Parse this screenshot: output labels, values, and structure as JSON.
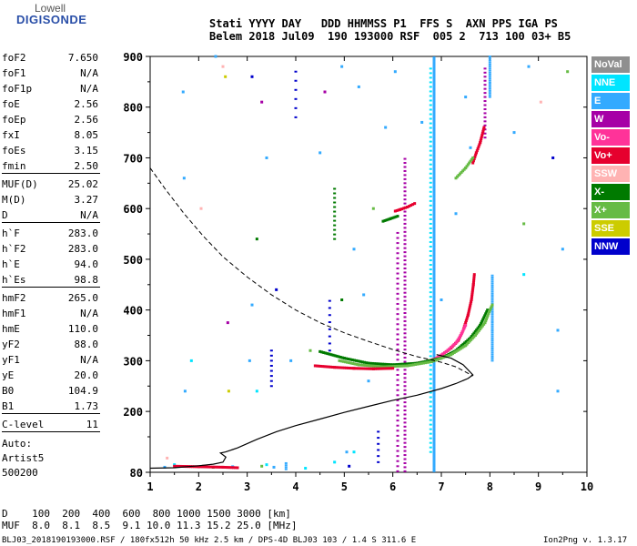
{
  "logo": {
    "line1": "Lowell",
    "line2": "DIGISONDE"
  },
  "header": {
    "line1": "Stati YYYY DAY   DDD HHMMSS P1  FFS S  AXN PPS IGA PS",
    "line2": "Belem 2018 Jul09  190 193000 RSF  005 2  713 100 03+ B5"
  },
  "params": [
    [
      {
        "label": "foF2",
        "value": "7.650"
      },
      {
        "label": "foF1",
        "value": "N/A"
      },
      {
        "label": "foF1p",
        "value": "N/A"
      },
      {
        "label": "foE",
        "value": "2.56"
      },
      {
        "label": "foEp",
        "value": "2.56"
      },
      {
        "label": "fxI",
        "value": "8.05"
      },
      {
        "label": "foEs",
        "value": "3.15"
      },
      {
        "label": "fmin",
        "value": "2.50"
      }
    ],
    [
      {
        "label": "MUF(D)",
        "value": "25.02"
      },
      {
        "label": "M(D)",
        "value": "3.27"
      },
      {
        "label": "D",
        "value": "N/A"
      }
    ],
    [
      {
        "label": "h`F",
        "value": "283.0"
      },
      {
        "label": "h`F2",
        "value": "283.0"
      },
      {
        "label": "h`E",
        "value": "94.0"
      },
      {
        "label": "h`Es",
        "value": "98.8"
      }
    ],
    [
      {
        "label": "hmF2",
        "value": "265.0"
      },
      {
        "label": "hmF1",
        "value": "N/A"
      },
      {
        "label": "hmE",
        "value": "110.0"
      },
      {
        "label": "yF2",
        "value": "88.0"
      },
      {
        "label": "yF1",
        "value": "N/A"
      },
      {
        "label": "yE",
        "value": "20.0"
      },
      {
        "label": "B0",
        "value": "104.9"
      },
      {
        "label": "B1",
        "value": "1.73"
      }
    ],
    [
      {
        "label": "C-level",
        "value": "11"
      }
    ]
  ],
  "autoscale": {
    "line1": "Auto:",
    "line2": "Artist5",
    "line3": "500200"
  },
  "legend": [
    {
      "label": "NoVal",
      "bg": "#8f8f8f",
      "fg": "#ffffff"
    },
    {
      "label": "NNE",
      "bg": "#00e5ff",
      "fg": "#ffffff"
    },
    {
      "label": "E",
      "bg": "#33aaff",
      "fg": "#ffffff"
    },
    {
      "label": "W",
      "bg": "#a600a6",
      "fg": "#ffffff"
    },
    {
      "label": "Vo-",
      "bg": "#ff3399",
      "fg": "#ffffff"
    },
    {
      "label": "Vo+",
      "bg": "#e6002e",
      "fg": "#ffffff"
    },
    {
      "label": "SSW",
      "bg": "#ffb3b3",
      "fg": "#ffffff"
    },
    {
      "label": "X-",
      "bg": "#007a00",
      "fg": "#ffffff"
    },
    {
      "label": "X+",
      "bg": "#66bb44",
      "fg": "#ffffff"
    },
    {
      "label": "SSE",
      "bg": "#cccc00",
      "fg": "#ffffff"
    },
    {
      "label": "NNW",
      "bg": "#0000cc",
      "fg": "#ffffff"
    }
  ],
  "footer": {
    "line1": "D    100  200  400  600  800 1000 1500 3000 [km]",
    "line2": "MUF  8.0  8.1  8.5  9.1 10.0 11.3 15.2 25.0 [MHz]",
    "line3": "BLJ03_2018190193000.RSF / 180fx512h 50 kHz 2.5 km / DPS-4D BLJ03 103 / 1.4 S 311.6 E",
    "version": "Ion2Png v. 1.3.17"
  },
  "chart_data": {
    "type": "scatter",
    "xlim": [
      1,
      10
    ],
    "ylim": [
      80,
      900
    ],
    "xticks": [
      1,
      2,
      3,
      4,
      5,
      6,
      7,
      8,
      9,
      10
    ],
    "yticks": [
      200,
      300,
      400,
      500,
      600,
      700,
      800,
      900
    ],
    "ytick_first_label": "80",
    "colors": {
      "NNE": "#00e5ff",
      "E": "#33aaff",
      "W": "#a600a6",
      "Vo-": "#ff3399",
      "Vo+": "#e6002e",
      "SSW": "#ffb3b3",
      "X-": "#007a00",
      "X+": "#66bb44",
      "SSE": "#cccc00",
      "NNW": "#0000cc"
    },
    "profile_solid": [
      [
        1.0,
        88
      ],
      [
        1.5,
        89
      ],
      [
        2.0,
        93
      ],
      [
        2.3,
        96
      ],
      [
        2.5,
        100
      ],
      [
        2.56,
        110
      ],
      [
        2.45,
        118
      ],
      [
        2.55,
        120
      ],
      [
        2.8,
        128
      ],
      [
        3.2,
        145
      ],
      [
        3.6,
        160
      ],
      [
        4.0,
        172
      ],
      [
        4.5,
        185
      ],
      [
        5.0,
        198
      ],
      [
        5.5,
        210
      ],
      [
        6.0,
        222
      ],
      [
        6.5,
        232
      ],
      [
        7.0,
        245
      ],
      [
        7.3,
        255
      ],
      [
        7.55,
        265
      ],
      [
        7.65,
        272
      ],
      [
        7.45,
        292
      ],
      [
        7.2,
        305
      ],
      [
        6.9,
        312
      ]
    ],
    "profile_dashed": [
      [
        1.0,
        680
      ],
      [
        1.3,
        640
      ],
      [
        1.7,
        590
      ],
      [
        2.1,
        545
      ],
      [
        2.5,
        505
      ],
      [
        3.0,
        465
      ],
      [
        3.5,
        430
      ],
      [
        4.0,
        400
      ],
      [
        4.5,
        375
      ],
      [
        5.0,
        355
      ],
      [
        5.5,
        338
      ],
      [
        6.0,
        322
      ],
      [
        6.5,
        308
      ],
      [
        7.0,
        297
      ],
      [
        7.3,
        288
      ],
      [
        7.65,
        270
      ]
    ],
    "traces": [
      {
        "color": "Vo+",
        "points": [
          [
            6.2,
            292
          ],
          [
            6.5,
            295
          ],
          [
            6.8,
            300
          ],
          [
            7.0,
            310
          ],
          [
            7.2,
            325
          ],
          [
            7.35,
            340
          ],
          [
            7.45,
            360
          ],
          [
            7.55,
            390
          ],
          [
            7.62,
            420
          ],
          [
            7.66,
            450
          ],
          [
            7.68,
            470
          ]
        ]
      },
      {
        "color": "Vo-",
        "points": [
          [
            6.1,
            290
          ],
          [
            6.4,
            292
          ],
          [
            6.7,
            298
          ],
          [
            6.9,
            305
          ],
          [
            7.1,
            318
          ],
          [
            7.3,
            335
          ],
          [
            7.4,
            350
          ],
          [
            7.5,
            370
          ]
        ]
      },
      {
        "color": "X-",
        "points": [
          [
            4.5,
            318
          ],
          [
            5.0,
            305
          ],
          [
            5.5,
            295
          ],
          [
            6.0,
            292
          ],
          [
            6.5,
            295
          ],
          [
            7.0,
            305
          ],
          [
            7.3,
            320
          ],
          [
            7.6,
            345
          ],
          [
            7.8,
            370
          ],
          [
            7.95,
            400
          ]
        ]
      },
      {
        "color": "X+",
        "points": [
          [
            4.9,
            300
          ],
          [
            5.3,
            292
          ],
          [
            5.8,
            288
          ],
          [
            6.3,
            290
          ],
          [
            6.8,
            298
          ],
          [
            7.2,
            312
          ],
          [
            7.5,
            330
          ],
          [
            7.7,
            350
          ],
          [
            7.9,
            375
          ],
          [
            8.0,
            400
          ],
          [
            8.05,
            410
          ]
        ]
      },
      {
        "color": "Vo+",
        "points": [
          [
            4.4,
            290
          ],
          [
            4.8,
            287
          ],
          [
            5.2,
            285
          ],
          [
            5.6,
            284
          ],
          [
            6.0,
            285
          ]
        ]
      },
      {
        "color": "Vo+",
        "points": [
          [
            6.05,
            595
          ],
          [
            6.15,
            598
          ],
          [
            6.3,
            603
          ],
          [
            6.45,
            610
          ]
        ]
      },
      {
        "color": "Vo+",
        "points": [
          [
            7.65,
            690
          ],
          [
            7.72,
            710
          ],
          [
            7.8,
            730
          ],
          [
            7.88,
            760
          ]
        ]
      },
      {
        "color": "Vo+",
        "points": [
          [
            1.5,
            92
          ],
          [
            2.0,
            91
          ],
          [
            2.5,
            90
          ],
          [
            2.8,
            89
          ]
        ]
      },
      {
        "color": "X-",
        "points": [
          [
            5.8,
            575
          ],
          [
            5.95,
            580
          ],
          [
            6.1,
            585
          ]
        ]
      },
      {
        "color": "X+",
        "points": [
          [
            7.3,
            660
          ],
          [
            7.5,
            680
          ],
          [
            7.65,
            700
          ]
        ]
      }
    ],
    "columns": [
      {
        "x": 6.85,
        "y0": 82,
        "y1": 900,
        "color": "E",
        "step": 3
      },
      {
        "x": 6.78,
        "y0": 120,
        "y1": 880,
        "color": "NNE",
        "step": 9
      },
      {
        "x": 6.25,
        "y0": 82,
        "y1": 700,
        "color": "W",
        "step": 8
      },
      {
        "x": 6.1,
        "y0": 82,
        "y1": 560,
        "color": "W",
        "step": 10
      },
      {
        "x": 8.05,
        "y0": 300,
        "y1": 470,
        "color": "E",
        "step": 4
      },
      {
        "x": 8.0,
        "y0": 820,
        "y1": 900,
        "color": "E",
        "step": 4
      },
      {
        "x": 7.9,
        "y0": 740,
        "y1": 880,
        "color": "W",
        "step": 8
      },
      {
        "x": 4.0,
        "y0": 780,
        "y1": 880,
        "color": "NNW",
        "step": 18
      },
      {
        "x": 4.8,
        "y0": 540,
        "y1": 640,
        "color": "X-",
        "step": 9
      },
      {
        "x": 4.7,
        "y0": 320,
        "y1": 420,
        "color": "NNW",
        "step": 14
      },
      {
        "x": 5.7,
        "y0": 100,
        "y1": 160,
        "color": "NNW",
        "step": 12
      },
      {
        "x": 3.5,
        "y0": 250,
        "y1": 320,
        "color": "NNW",
        "step": 10
      },
      {
        "x": 3.8,
        "y0": 86,
        "y1": 100,
        "color": "E",
        "step": 4
      }
    ],
    "dots": [
      [
        1.68,
        830,
        "E"
      ],
      [
        1.7,
        660,
        "E"
      ],
      [
        1.72,
        240,
        "E"
      ],
      [
        1.85,
        300,
        "NNE"
      ],
      [
        2.05,
        600,
        "SSW"
      ],
      [
        2.5,
        880,
        "SSW"
      ],
      [
        2.55,
        860,
        "SSE"
      ],
      [
        2.62,
        240,
        "SSE"
      ],
      [
        2.6,
        375,
        "W"
      ],
      [
        2.35,
        900,
        "E"
      ],
      [
        3.1,
        410,
        "E"
      ],
      [
        3.2,
        540,
        "X-"
      ],
      [
        3.1,
        860,
        "NNW"
      ],
      [
        3.3,
        810,
        "W"
      ],
      [
        3.6,
        440,
        "NNW"
      ],
      [
        3.4,
        700,
        "E"
      ],
      [
        3.05,
        300,
        "E"
      ],
      [
        3.2,
        240,
        "NNE"
      ],
      [
        4.5,
        710,
        "E"
      ],
      [
        4.6,
        830,
        "W"
      ],
      [
        4.95,
        880,
        "E"
      ],
      [
        4.95,
        420,
        "X-"
      ],
      [
        5.3,
        840,
        "E"
      ],
      [
        5.4,
        430,
        "E"
      ],
      [
        5.2,
        520,
        "E"
      ],
      [
        5.5,
        260,
        "E"
      ],
      [
        5.2,
        120,
        "NNE"
      ],
      [
        5.05,
        120,
        "E"
      ],
      [
        5.6,
        600,
        "X+"
      ],
      [
        5.85,
        760,
        "E"
      ],
      [
        6.05,
        870,
        "E"
      ],
      [
        6.6,
        770,
        "E"
      ],
      [
        7.0,
        420,
        "E"
      ],
      [
        7.3,
        590,
        "E"
      ],
      [
        7.6,
        720,
        "E"
      ],
      [
        7.5,
        820,
        "E"
      ],
      [
        8.5,
        750,
        "E"
      ],
      [
        8.7,
        570,
        "X+"
      ],
      [
        8.7,
        470,
        "NNE"
      ],
      [
        9.05,
        810,
        "SSW"
      ],
      [
        9.3,
        700,
        "NNW"
      ],
      [
        9.4,
        240,
        "E"
      ],
      [
        9.4,
        360,
        "E"
      ],
      [
        9.5,
        520,
        "E"
      ],
      [
        9.6,
        870,
        "X+"
      ],
      [
        8.8,
        880,
        "E"
      ],
      [
        1.35,
        108,
        "SSW"
      ],
      [
        1.3,
        90,
        "E"
      ],
      [
        1.5,
        95,
        "NNE"
      ],
      [
        2.1,
        92,
        "Vo+"
      ],
      [
        2.3,
        90,
        "X-"
      ],
      [
        2.7,
        91,
        "E"
      ],
      [
        3.4,
        95,
        "NNE"
      ],
      [
        3.3,
        92,
        "X+"
      ],
      [
        3.55,
        90,
        "E"
      ],
      [
        4.2,
        88,
        "NNE"
      ],
      [
        4.8,
        100,
        "NNE"
      ],
      [
        5.1,
        92,
        "NNW"
      ],
      [
        4.3,
        320,
        "X+"
      ],
      [
        3.9,
        300,
        "E"
      ]
    ]
  }
}
